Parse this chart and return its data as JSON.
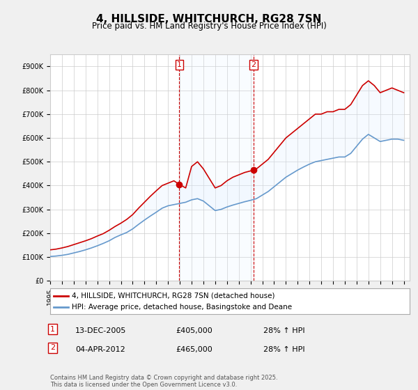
{
  "title": "4, HILLSIDE, WHITCHURCH, RG28 7SN",
  "subtitle": "Price paid vs. HM Land Registry's House Price Index (HPI)",
  "background_color": "#f0f0f0",
  "plot_background": "#ffffff",
  "legend1": "4, HILLSIDE, WHITCHURCH, RG28 7SN (detached house)",
  "legend2": "HPI: Average price, detached house, Basingstoke and Deane",
  "red_color": "#cc0000",
  "blue_color": "#6699cc",
  "shade_color": "#ddeeff",
  "annotation1_date": "13-DEC-2005",
  "annotation1_price": "£405,000",
  "annotation1_hpi": "28% ↑ HPI",
  "annotation2_date": "04-APR-2012",
  "annotation2_price": "£465,000",
  "annotation2_hpi": "28% ↑ HPI",
  "footer": "Contains HM Land Registry data © Crown copyright and database right 2025.\nThis data is licensed under the Open Government Licence v3.0.",
  "ylim": [
    0,
    950000
  ],
  "yticks": [
    0,
    100000,
    200000,
    300000,
    400000,
    500000,
    600000,
    700000,
    800000,
    900000
  ],
  "xlim_start": 1995.0,
  "xlim_end": 2025.5,
  "sale1_x": 2005.95,
  "sale1_y": 405000,
  "sale2_x": 2012.27,
  "sale2_y": 465000,
  "red_x": [
    1995.0,
    1995.5,
    1996.0,
    1996.5,
    1997.0,
    1997.5,
    1998.0,
    1998.5,
    1999.0,
    1999.5,
    2000.0,
    2000.5,
    2001.0,
    2001.5,
    2002.0,
    2002.5,
    2003.0,
    2003.5,
    2004.0,
    2004.5,
    2005.0,
    2005.5,
    2005.95,
    2006.5,
    2007.0,
    2007.5,
    2008.0,
    2008.5,
    2009.0,
    2009.5,
    2010.0,
    2010.5,
    2011.0,
    2011.5,
    2012.27,
    2012.5,
    2013.0,
    2013.5,
    2014.0,
    2014.5,
    2015.0,
    2015.5,
    2016.0,
    2016.5,
    2017.0,
    2017.5,
    2018.0,
    2018.5,
    2019.0,
    2019.5,
    2020.0,
    2020.5,
    2021.0,
    2021.5,
    2022.0,
    2022.5,
    2023.0,
    2023.5,
    2024.0,
    2024.5,
    2025.0
  ],
  "red_y": [
    130000,
    133000,
    138000,
    144000,
    152000,
    160000,
    168000,
    177000,
    188000,
    198000,
    212000,
    228000,
    242000,
    258000,
    278000,
    305000,
    330000,
    355000,
    378000,
    400000,
    410000,
    420000,
    405000,
    390000,
    480000,
    500000,
    470000,
    430000,
    390000,
    400000,
    420000,
    435000,
    445000,
    455000,
    465000,
    470000,
    490000,
    510000,
    540000,
    570000,
    600000,
    620000,
    640000,
    660000,
    680000,
    700000,
    700000,
    710000,
    710000,
    720000,
    720000,
    740000,
    780000,
    820000,
    840000,
    820000,
    790000,
    800000,
    810000,
    800000,
    790000
  ],
  "blue_x": [
    1995.0,
    1995.5,
    1996.0,
    1996.5,
    1997.0,
    1997.5,
    1998.0,
    1998.5,
    1999.0,
    1999.5,
    2000.0,
    2000.5,
    2001.0,
    2001.5,
    2002.0,
    2002.5,
    2003.0,
    2003.5,
    2004.0,
    2004.5,
    2005.0,
    2005.5,
    2006.0,
    2006.5,
    2007.0,
    2007.5,
    2008.0,
    2008.5,
    2009.0,
    2009.5,
    2010.0,
    2010.5,
    2011.0,
    2011.5,
    2012.0,
    2012.5,
    2013.0,
    2013.5,
    2014.0,
    2014.5,
    2015.0,
    2015.5,
    2016.0,
    2016.5,
    2017.0,
    2017.5,
    2018.0,
    2018.5,
    2019.0,
    2019.5,
    2020.0,
    2020.5,
    2021.0,
    2021.5,
    2022.0,
    2022.5,
    2023.0,
    2023.5,
    2024.0,
    2024.5,
    2025.0
  ],
  "blue_y": [
    102000,
    104000,
    107000,
    111000,
    117000,
    123000,
    130000,
    138000,
    147000,
    157000,
    168000,
    182000,
    193000,
    203000,
    218000,
    237000,
    255000,
    272000,
    288000,
    305000,
    315000,
    320000,
    325000,
    330000,
    340000,
    345000,
    335000,
    315000,
    295000,
    300000,
    310000,
    318000,
    325000,
    332000,
    338000,
    345000,
    360000,
    375000,
    395000,
    415000,
    435000,
    450000,
    465000,
    478000,
    490000,
    500000,
    505000,
    510000,
    515000,
    520000,
    520000,
    535000,
    565000,
    595000,
    615000,
    600000,
    585000,
    590000,
    595000,
    595000,
    590000
  ]
}
